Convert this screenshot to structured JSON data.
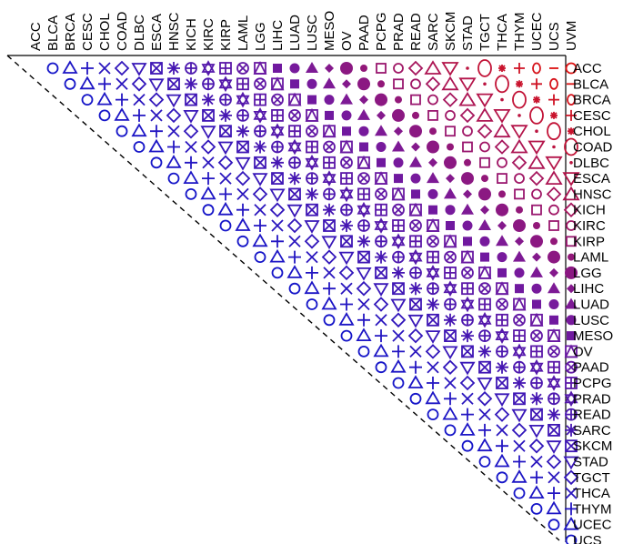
{
  "chart_data": {
    "type": "heatmap",
    "title": "",
    "xlabel": "",
    "ylabel": "",
    "categories": [
      "ACC",
      "BLCA",
      "BRCA",
      "CESC",
      "CHOL",
      "COAD",
      "DLBC",
      "ESCA",
      "HNSC",
      "KICH",
      "KIRC",
      "KIRP",
      "LAML",
      "LGG",
      "LIHC",
      "LUAD",
      "LUSC",
      "MESO",
      "OV",
      "PAAD",
      "PCPG",
      "PRAD",
      "READ",
      "SARC",
      "SKCM",
      "STAD",
      "TGCT",
      "THCA",
      "THYM",
      "UCEC",
      "UCS",
      "UVM"
    ],
    "marker_cycle": [
      "circle",
      "triangle-up",
      "plus",
      "cross",
      "diamond",
      "triangle-down",
      "box-x",
      "asterisk",
      "circle-plus",
      "star-of-david",
      "box-plus",
      "circle-x",
      "box-triangle",
      "filled-square",
      "filled-circle",
      "filled-triangle",
      "filled-diamond",
      "filled-circle-large",
      "small-dot",
      "open-square",
      "open-circle",
      "open-diamond",
      "open-triangle-up",
      "open-triangle-down",
      "dot",
      "large-circle",
      "asterisk-small",
      "plus-small",
      "small-o",
      "dash"
    ],
    "color_scale": {
      "low": "#1515c8",
      "mid": "#7a1a9a",
      "high": "#dd1111"
    },
    "layout": "upper-triangle, cells above a dashed diagonal; column labels on top (rotated), row labels on right"
  }
}
